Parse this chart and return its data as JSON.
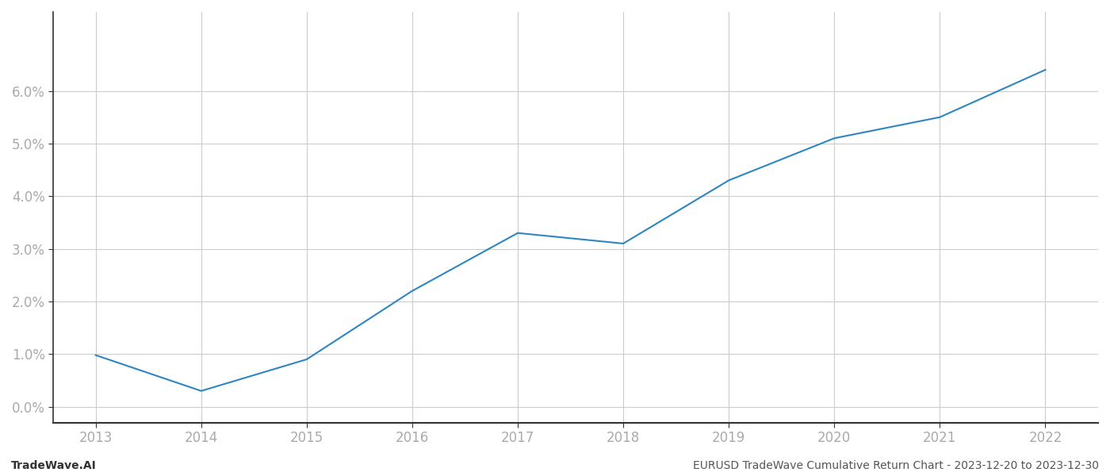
{
  "x_years": [
    2013,
    2014,
    2015,
    2016,
    2017,
    2018,
    2019,
    2020,
    2021,
    2022
  ],
  "y_values": [
    0.0098,
    0.003,
    0.009,
    0.022,
    0.033,
    0.031,
    0.043,
    0.051,
    0.055,
    0.064
  ],
  "line_color": "#2e86c1",
  "line_width": 1.5,
  "background_color": "#ffffff",
  "grid_color": "#cccccc",
  "ylim": [
    -0.003,
    0.075
  ],
  "xlim": [
    2012.6,
    2022.5
  ],
  "yticks": [
    0.0,
    0.01,
    0.02,
    0.03,
    0.04,
    0.05,
    0.06
  ],
  "xticks": [
    2013,
    2014,
    2015,
    2016,
    2017,
    2018,
    2019,
    2020,
    2021,
    2022
  ],
  "footer_left": "TradeWave.AI",
  "footer_right": "EURUSD TradeWave Cumulative Return Chart - 2023-12-20 to 2023-12-30",
  "footer_fontsize": 10,
  "tick_fontsize": 12,
  "tick_color": "#aaaaaa",
  "left_spine_color": "#333333",
  "bottom_spine_color": "#333333"
}
